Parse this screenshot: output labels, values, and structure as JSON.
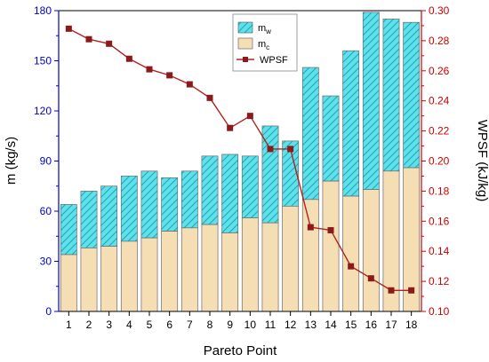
{
  "chart_data": {
    "type": "bar",
    "subtype": "stacked bar with line on secondary axis",
    "title": "",
    "xlabel": "Pareto Point",
    "ylabel": "m (kg/s)",
    "y2label": "WPSF (kJ/kg)",
    "categories": [
      "1",
      "2",
      "3",
      "4",
      "5",
      "6",
      "7",
      "8",
      "9",
      "10",
      "11",
      "12",
      "13",
      "14",
      "15",
      "16",
      "17",
      "18"
    ],
    "ylim": [
      0,
      180
    ],
    "y2lim": [
      0.1,
      0.3
    ],
    "yticks": [
      0,
      30,
      60,
      90,
      120,
      150,
      180
    ],
    "y2ticks": [
      "0.10",
      "0.12",
      "0.14",
      "0.16",
      "0.18",
      "0.20",
      "0.22",
      "0.24",
      "0.26",
      "0.28",
      "0.30"
    ],
    "series": [
      {
        "name": "m",
        "name_subscript": "c",
        "kind": "bar",
        "axis": "left",
        "color": "#f5deb3",
        "values": [
          34,
          38,
          39,
          42,
          44,
          48,
          50,
          52,
          47,
          56,
          53,
          63,
          67,
          78,
          69,
          73,
          84,
          86
        ]
      },
      {
        "name": "m",
        "name_subscript": "w",
        "kind": "bar",
        "axis": "left",
        "stacked_on": "m_c",
        "color": "#5fe0ea",
        "hatch": "diagonal",
        "totals": [
          64,
          72,
          75,
          81,
          84,
          80,
          84,
          93,
          94,
          93,
          111,
          102,
          146,
          129,
          156,
          179,
          175,
          173
        ]
      },
      {
        "name": "WPSF",
        "kind": "line",
        "axis": "right",
        "color": "#b22222",
        "marker": "square",
        "values": [
          0.288,
          0.281,
          0.278,
          0.268,
          0.261,
          0.257,
          0.251,
          0.242,
          0.222,
          0.23,
          0.208,
          0.208,
          0.156,
          0.154,
          0.13,
          0.122,
          0.114,
          0.114
        ]
      }
    ],
    "grid": false,
    "legend": "top-right"
  },
  "colors": {
    "left_axis": "#0000cc",
    "right_axis": "#cc0000",
    "frame": "#000000"
  }
}
